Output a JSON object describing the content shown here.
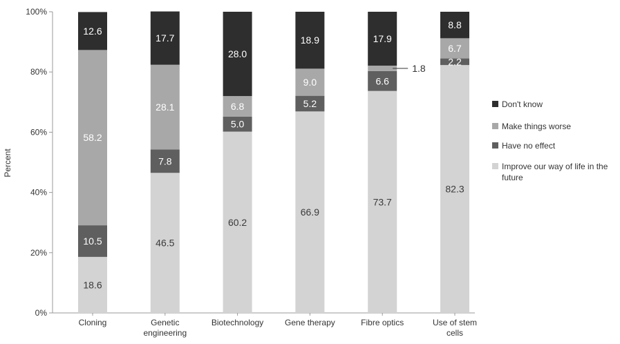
{
  "chart_data": {
    "type": "bar",
    "stacked": true,
    "ylabel": "Percent",
    "ylim": [
      0,
      100
    ],
    "yticks": [
      "0%",
      "20%",
      "40%",
      "60%",
      "80%",
      "100%"
    ],
    "grid": false,
    "legend_position": "right",
    "categories": [
      [
        "Cloning"
      ],
      [
        "Genetic",
        "engineering"
      ],
      [
        "Biotechnology"
      ],
      [
        "Gene therapy"
      ],
      [
        "Fibre optics"
      ],
      [
        "Use of stem",
        "cells"
      ]
    ],
    "series": [
      {
        "name": "Improve our way of life in the future",
        "legend_lines": [
          "Improve our way of life in the",
          "future"
        ],
        "color": "#d3d3d3",
        "label_color": "#3a3a3a",
        "values": [
          18.6,
          46.5,
          60.2,
          66.9,
          73.7,
          82.3
        ],
        "labels": [
          "18.6",
          "46.5",
          "60.2",
          "66.9",
          "73.7",
          "82.3"
        ]
      },
      {
        "name": "Have no effect",
        "legend_lines": [
          "Have no effect"
        ],
        "color": "#5f5f5f",
        "label_color": "#ffffff",
        "values": [
          10.5,
          7.8,
          5.0,
          5.2,
          6.6,
          2.2
        ],
        "labels": [
          "10.5",
          "7.8",
          "5.0",
          "5.2",
          "6.6",
          "2.2"
        ]
      },
      {
        "name": "Make things worse",
        "legend_lines": [
          "Make things worse"
        ],
        "color": "#a8a8a8",
        "label_color": "#ffffff",
        "values": [
          58.2,
          28.1,
          6.8,
          9.0,
          1.8,
          6.7
        ],
        "labels": [
          "58.2",
          "28.1",
          "6.8",
          "9.0",
          "1.8",
          "6.7"
        ]
      },
      {
        "name": "Don't know",
        "legend_lines": [
          "Don't know"
        ],
        "color": "#2e2e2e",
        "label_color": "#ffffff",
        "values": [
          12.6,
          17.7,
          28.0,
          18.9,
          17.9,
          8.8
        ],
        "labels": [
          "12.6",
          "17.7",
          "28.0",
          "18.9",
          "17.9",
          "8.8"
        ]
      }
    ],
    "annotations": [
      {
        "category_index": 4,
        "series_index": 2,
        "text": "1.8",
        "callout": true
      }
    ]
  }
}
